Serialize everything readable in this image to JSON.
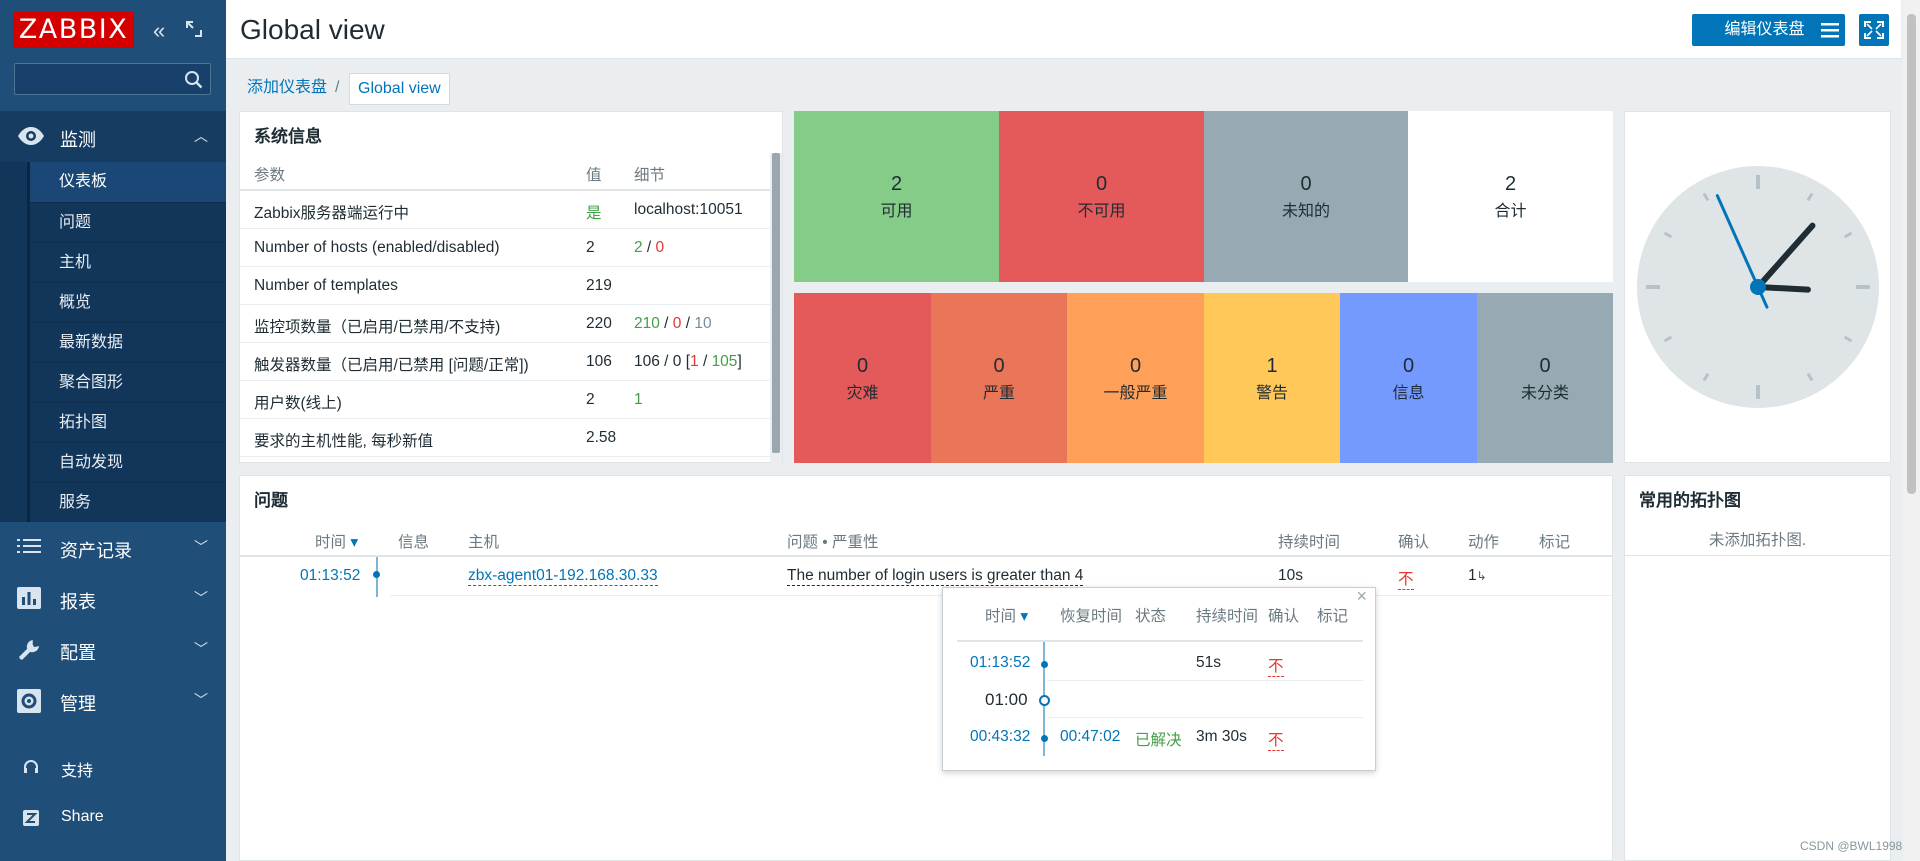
{
  "sidebar": {
    "logo": "ZABBIX",
    "search_placeholder": "",
    "monitoring": {
      "label": "监测",
      "items": [
        "仪表板",
        "问题",
        "主机",
        "概览",
        "最新数据",
        "聚合图形",
        "拓扑图",
        "自动发现",
        "服务"
      ]
    },
    "inventory": "资产记录",
    "reports": "报表",
    "config": "配置",
    "admin": "管理",
    "support": "支持",
    "share": "Share"
  },
  "header": {
    "title": "Global view",
    "edit_button": "编辑仪表盘"
  },
  "breadcrumb": {
    "parent": "添加仪表盘",
    "sep": "/",
    "current": "Global view"
  },
  "sysinfo": {
    "title": "系统信息",
    "headers": [
      "参数",
      "值",
      "细节"
    ],
    "rows": [
      {
        "param": "Zabbix服务器端运行中",
        "value": "是",
        "detail": "localhost:10051"
      },
      {
        "param": "Number of hosts (enabled/disabled)",
        "value": "2",
        "d1": "2",
        "s1": " / ",
        "d2": "0"
      },
      {
        "param": "Number of templates",
        "value": "219"
      },
      {
        "param": "监控项数量（已启用/已禁用/不支持)",
        "value": "220",
        "d1": "210",
        "s1": " / ",
        "d2": "0",
        "s2": " / ",
        "d3": "10"
      },
      {
        "param": "触发器数量（已启用/已禁用 [问题/正常])",
        "value": "106",
        "d0": "106 / 0 [",
        "d1": "1",
        "s1": " / ",
        "d2": "105",
        "d3": "]"
      },
      {
        "param": "用户数(线上)",
        "value": "2",
        "d1": "1"
      },
      {
        "param": "要求的主机性能, 每秒新值",
        "value": "2.58"
      }
    ]
  },
  "host_availability": [
    {
      "count": "2",
      "label": "可用",
      "color": "#86cc89"
    },
    {
      "count": "0",
      "label": "不可用",
      "color": "#e45959"
    },
    {
      "count": "0",
      "label": "未知的",
      "color": "#97aab3"
    },
    {
      "count": "2",
      "label": "合计",
      "color": "#ffffff"
    }
  ],
  "problem_severity": [
    {
      "count": "0",
      "label": "灾难",
      "color": "#e45959"
    },
    {
      "count": "0",
      "label": "严重",
      "color": "#e97659"
    },
    {
      "count": "0",
      "label": "一般严重",
      "color": "#ffa059"
    },
    {
      "count": "1",
      "label": "警告",
      "color": "#ffc859"
    },
    {
      "count": "0",
      "label": "信息",
      "color": "#7499ff"
    },
    {
      "count": "0",
      "label": "未分类",
      "color": "#97aab3"
    }
  ],
  "problems": {
    "title": "问题",
    "headers": {
      "time": "时间",
      "info": "信息",
      "host": "主机",
      "problem": "问题 • 严重性",
      "duration": "持续时间",
      "ack": "确认",
      "actions": "动作",
      "tags": "标记"
    },
    "row": {
      "time": "01:13:52",
      "host": "zbx-agent01-192.168.30.33",
      "problem": "The number of login users is greater than 4",
      "duration": "10s",
      "ack": "不",
      "actions": "1"
    }
  },
  "popup": {
    "close": "×",
    "headers": {
      "time": "时间",
      "recovery": "恢复时间",
      "status": "状态",
      "duration": "持续时间",
      "ack": "确认",
      "tags": "标记"
    },
    "rows": [
      {
        "time": "01:13:52",
        "recovery": "",
        "status": "",
        "duration": "51s",
        "ack": "不"
      },
      {
        "time": "01:00"
      },
      {
        "time": "00:43:32",
        "recovery": "00:47:02",
        "status": "已解决",
        "duration": "3m 30s",
        "ack": "不"
      }
    ]
  },
  "maps": {
    "title": "常用的拓扑图",
    "empty": "未添加拓扑图."
  },
  "clock": {
    "hours": 3,
    "minutes": 6,
    "seconds": 56
  },
  "watermark": "CSDN @BWL1998"
}
